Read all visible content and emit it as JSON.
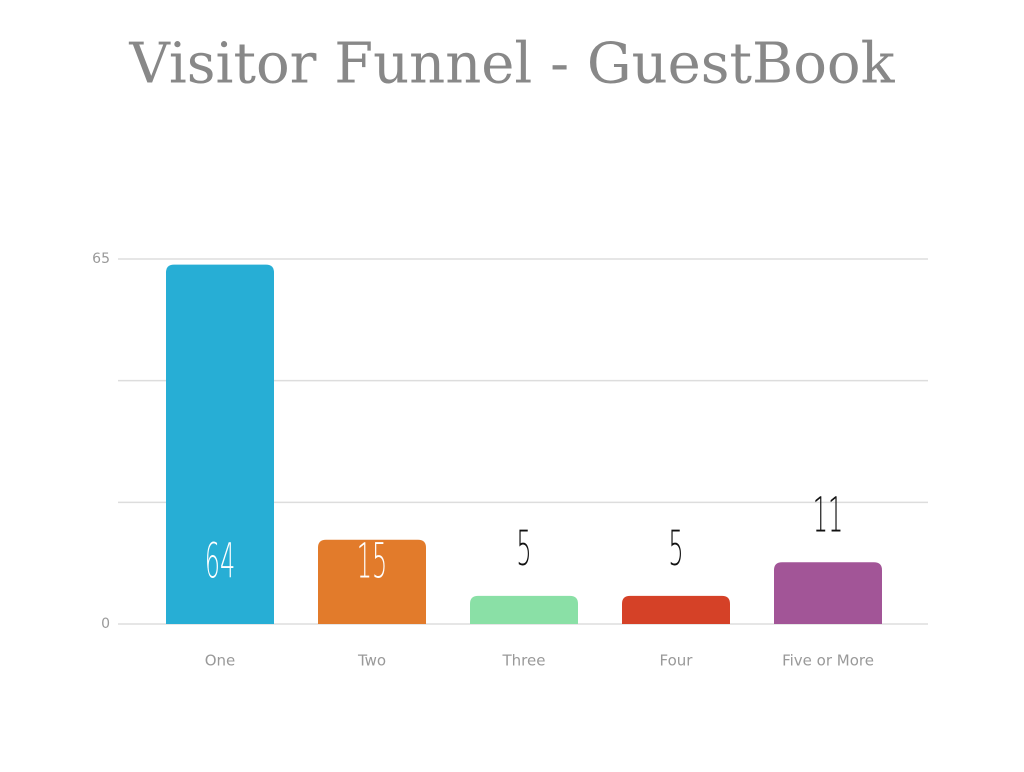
{
  "chart_data": {
    "type": "bar",
    "title": "Visitor Funnel - GuestBook",
    "categories": [
      "One",
      "Two",
      "Three",
      "Four",
      "Five or More"
    ],
    "values": [
      64,
      15,
      5,
      5,
      11
    ],
    "colors": [
      "#27aed5",
      "#e27b2b",
      "#8ae0a6",
      "#d54127",
      "#a25597"
    ],
    "ylim": [
      0,
      65
    ],
    "yticks": [
      0,
      65
    ],
    "minor_yticks": [
      21.67,
      43.33
    ],
    "grid": true
  }
}
